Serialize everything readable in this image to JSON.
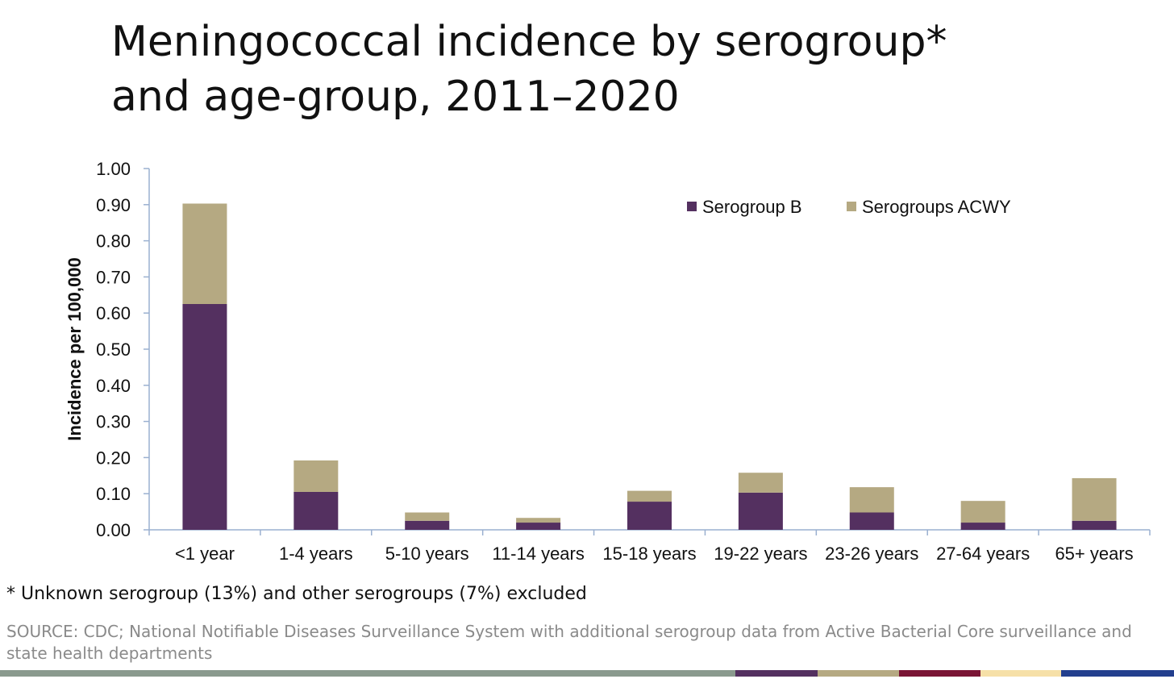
{
  "title": {
    "line1": "Meningococcal incidence by serogroup*",
    "line2": "and age-group, 2011–2020"
  },
  "footnote": "* Unknown serogroup (13%) and other serogroups (7%) excluded",
  "source": "SOURCE: CDC; National Notifiable Diseases Surveillance System with additional serogroup data from Active Bacterial Core surveillance and state health departments",
  "colors": {
    "serogroup_b": "#543060",
    "serogroups_acwy": "#b5a982",
    "axis": "#9ab0d0",
    "bottom_bar": [
      "#8a9a8e",
      "#543060",
      "#b5a982",
      "#7a1535",
      "#f6e0a8",
      "#233f8e"
    ]
  },
  "chart_data": {
    "type": "bar",
    "stacked": true,
    "title": "",
    "xlabel": "",
    "ylabel": "Incidence per 100,000",
    "ylim": [
      0,
      1.0
    ],
    "yticks": [
      "0.00",
      "0.10",
      "0.20",
      "0.30",
      "0.40",
      "0.50",
      "0.60",
      "0.70",
      "0.80",
      "0.90",
      "1.00"
    ],
    "categories": [
      "<1 year",
      "1-4 years",
      "5-10 years",
      "11-14 years",
      "15-18 years",
      "19-22 years",
      "23-26 years",
      "27-64 years",
      "65+ years"
    ],
    "series": [
      {
        "name": "Serogroup B",
        "values": [
          0.625,
          0.105,
          0.025,
          0.02,
          0.078,
          0.103,
          0.048,
          0.02,
          0.025
        ]
      },
      {
        "name": "Serogroups ACWY",
        "values": [
          0.278,
          0.087,
          0.023,
          0.013,
          0.03,
          0.055,
          0.07,
          0.06,
          0.118
        ]
      }
    ],
    "legend": "top-right",
    "grid": false
  }
}
